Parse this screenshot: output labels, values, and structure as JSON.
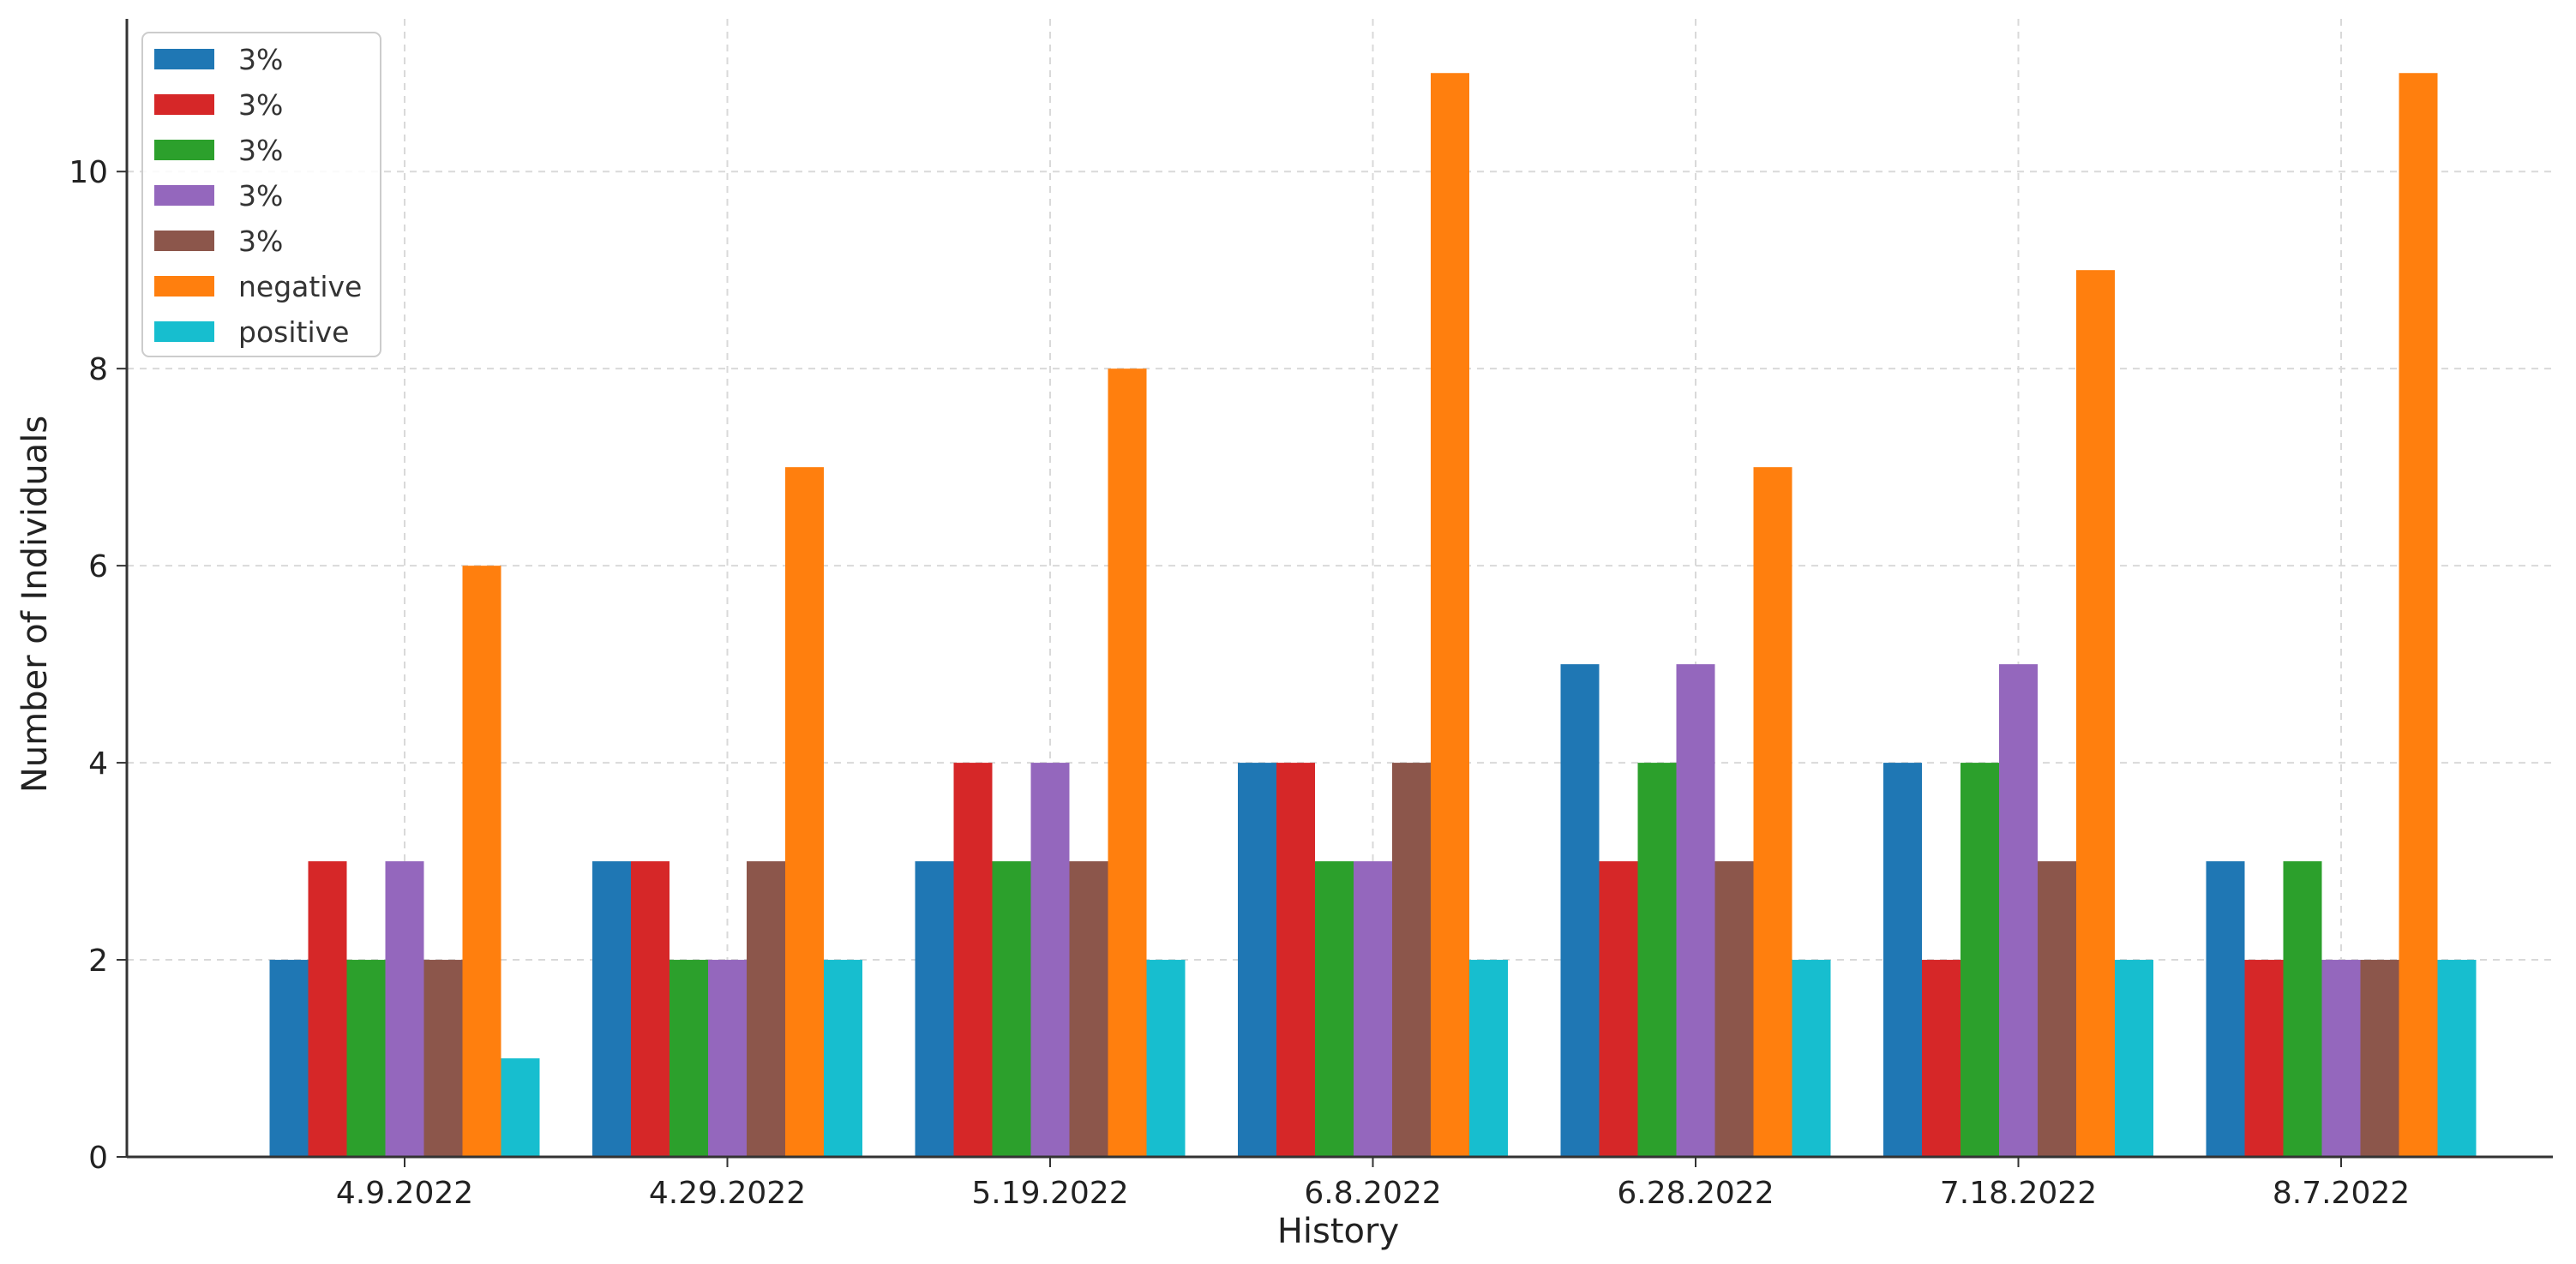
{
  "chart_data": {
    "type": "bar",
    "title": "",
    "xlabel": "History",
    "ylabel": "Number of Individuals",
    "categories": [
      "4.9.2022",
      "4.29.2022",
      "5.19.2022",
      "6.8.2022",
      "6.28.2022",
      "7.18.2022",
      "8.7.2022"
    ],
    "ylim": [
      0,
      11.55
    ],
    "yticks": [
      0,
      2,
      4,
      6,
      8,
      10
    ],
    "grid": true,
    "legend_position": "top-left",
    "series": [
      {
        "name": "3%",
        "color": "#1f77b4",
        "values": [
          2,
          3,
          3,
          4,
          5,
          4,
          3
        ]
      },
      {
        "name": "3%",
        "color": "#d62728",
        "values": [
          3,
          3,
          4,
          4,
          3,
          2,
          2
        ]
      },
      {
        "name": "3%",
        "color": "#2ca02c",
        "values": [
          2,
          2,
          3,
          3,
          4,
          4,
          3
        ]
      },
      {
        "name": "3%",
        "color": "#9467bd",
        "values": [
          3,
          2,
          4,
          3,
          5,
          5,
          2
        ]
      },
      {
        "name": "3%",
        "color": "#8c564b",
        "values": [
          2,
          3,
          3,
          4,
          3,
          3,
          2
        ]
      },
      {
        "name": "negative",
        "color": "#ff7f0e",
        "values": [
          6,
          7,
          8,
          11,
          7,
          9,
          11
        ]
      },
      {
        "name": "positive",
        "color": "#17becf",
        "values": [
          1,
          2,
          2,
          2,
          2,
          2,
          2
        ]
      }
    ]
  }
}
